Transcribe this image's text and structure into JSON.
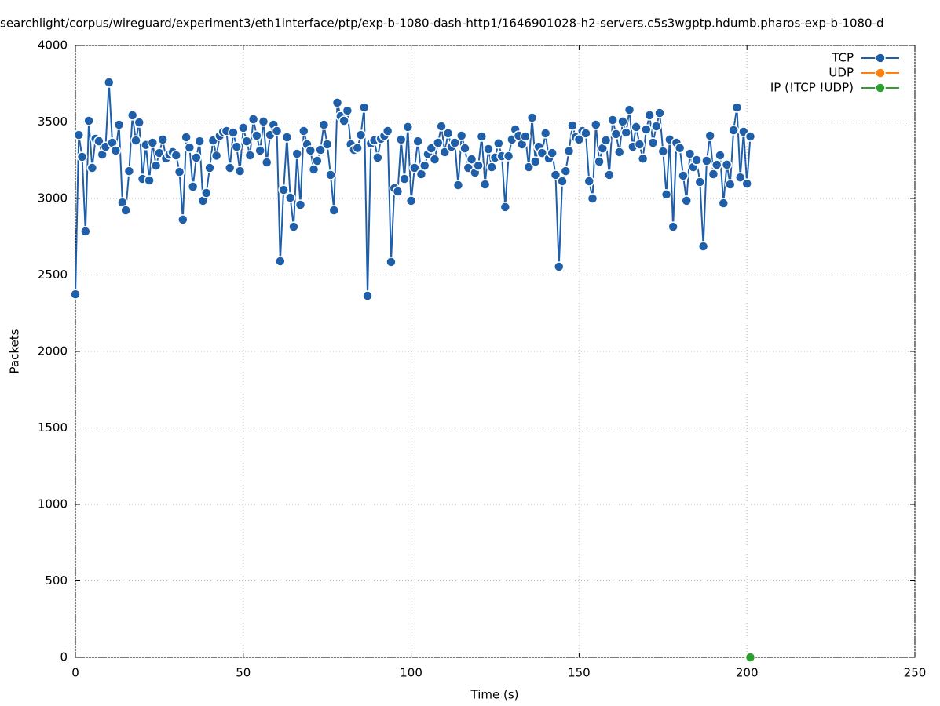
{
  "chart_data": {
    "type": "line",
    "title": "searchlight/corpus/wireguard/experiment3/eth1interface/ptp/exp-b-1080-dash-http1/1646901028-h2-servers.c5s3wgptp.hdumb.pharos-exp-b-1080-d",
    "xlabel": "Time (s)",
    "ylabel": "Packets",
    "xlim": [
      0,
      250
    ],
    "ylim": [
      0,
      4000
    ],
    "xticks": [
      0,
      50,
      100,
      150,
      200,
      250
    ],
    "yticks": [
      0,
      500,
      1000,
      1500,
      2000,
      2500,
      3000,
      3500,
      4000
    ],
    "grid": true,
    "legend": "top-right",
    "series": [
      {
        "name": "TCP",
        "color": "#1f5faa",
        "x": [
          0,
          1,
          2,
          3,
          4,
          5,
          6,
          7,
          8,
          9,
          10,
          11,
          12,
          13,
          14,
          15,
          16,
          17,
          18,
          19,
          20,
          21,
          22,
          23,
          24,
          25,
          26,
          27,
          28,
          29,
          30,
          31,
          32,
          33,
          34,
          35,
          36,
          37,
          38,
          39,
          40,
          41,
          42,
          43,
          44,
          45,
          46,
          47,
          48,
          49,
          50,
          51,
          52,
          53,
          54,
          55,
          56,
          57,
          58,
          59,
          60,
          61,
          62,
          63,
          64,
          65,
          66,
          67,
          68,
          69,
          70,
          71,
          72,
          73,
          74,
          75,
          76,
          77,
          78,
          79,
          80,
          81,
          82,
          83,
          84,
          85,
          86,
          87,
          88,
          89,
          90,
          91,
          92,
          93,
          94,
          95,
          96,
          97,
          98,
          99,
          100,
          101,
          102,
          103,
          104,
          105,
          106,
          107,
          108,
          109,
          110,
          111,
          112,
          113,
          114,
          115,
          116,
          117,
          118,
          119,
          120,
          121,
          122,
          123,
          124,
          125,
          126,
          127,
          128,
          129,
          130,
          131,
          132,
          133,
          134,
          135,
          136,
          137,
          138,
          139,
          140,
          141,
          142,
          143,
          144,
          145,
          146,
          147,
          148,
          149,
          150,
          151,
          152,
          153,
          154,
          155,
          156,
          157,
          158,
          159,
          160,
          161,
          162,
          163,
          164,
          165,
          166,
          167,
          168,
          169,
          170,
          171,
          172,
          173,
          174,
          175,
          176,
          177,
          178,
          179,
          180,
          181,
          182,
          183,
          184,
          185,
          186,
          187,
          188,
          189,
          190,
          191,
          192,
          193,
          194,
          195,
          196,
          197,
          198,
          199,
          200,
          201
        ],
        "values": [
          2374,
          3415,
          3272,
          2785,
          3508,
          3200,
          3390,
          3374,
          3287,
          3338,
          3759,
          3364,
          3313,
          3482,
          2974,
          2923,
          3179,
          3544,
          3379,
          3497,
          3128,
          3350,
          3118,
          3364,
          3215,
          3297,
          3385,
          3262,
          3287,
          3303,
          3282,
          3174,
          2862,
          3400,
          3333,
          3077,
          3267,
          3374,
          2985,
          3036,
          3200,
          3379,
          3280,
          3410,
          3436,
          3441,
          3200,
          3431,
          3338,
          3179,
          3462,
          3374,
          3282,
          3518,
          3410,
          3313,
          3503,
          3236,
          3415,
          3482,
          3441,
          2590,
          3056,
          3400,
          3005,
          2815,
          3292,
          2959,
          3441,
          3354,
          3313,
          3190,
          3246,
          3318,
          3482,
          3354,
          3154,
          2923,
          3626,
          3538,
          3508,
          3574,
          3354,
          3318,
          3330,
          3415,
          3595,
          2364,
          3359,
          3380,
          3267,
          3390,
          3410,
          3441,
          2585,
          3067,
          3046,
          3385,
          3128,
          3467,
          2985,
          3200,
          3374,
          3159,
          3215,
          3290,
          3328,
          3256,
          3364,
          3472,
          3303,
          3426,
          3338,
          3364,
          3087,
          3410,
          3328,
          3200,
          3256,
          3169,
          3215,
          3405,
          3092,
          3323,
          3205,
          3267,
          3360,
          3277,
          2944,
          3277,
          3385,
          3451,
          3410,
          3354,
          3405,
          3205,
          3528,
          3241,
          3338,
          3297,
          3426,
          3262,
          3297,
          3154,
          2554,
          3113,
          3179,
          3310,
          3477,
          3400,
          3385,
          3441,
          3426,
          3113,
          3000,
          3482,
          3241,
          3328,
          3380,
          3154,
          3513,
          3421,
          3303,
          3503,
          3431,
          3579,
          3338,
          3467,
          3354,
          3260,
          3451,
          3544,
          3364,
          3472,
          3559,
          3308,
          3026,
          3385,
          2815,
          3364,
          3330,
          3149,
          2985,
          3292,
          3205,
          3251,
          3108,
          2687,
          3246,
          3410,
          3159,
          3220,
          3282,
          2969,
          3221,
          3092,
          3446,
          3595,
          3138,
          3436,
          3097,
          3405
        ]
      },
      {
        "name": "UDP",
        "color": "#ff7f0e",
        "x": [],
        "values": []
      },
      {
        "name": "IP (!TCP  !UDP)",
        "color": "#2ca02c",
        "x": [
          201
        ],
        "values": [
          0
        ]
      }
    ]
  }
}
